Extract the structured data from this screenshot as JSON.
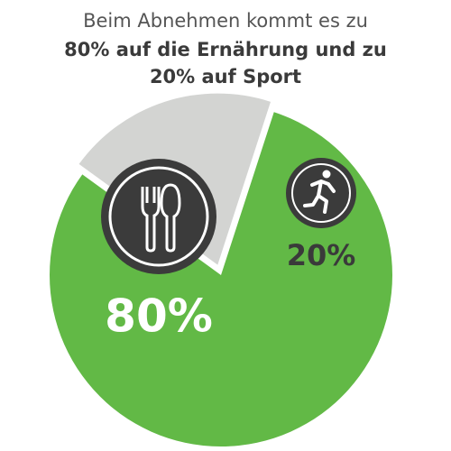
{
  "chart_data": {
    "type": "pie",
    "title": [
      "Beim Abnehmen kommt es zu",
      "80% auf die Ernährung und zu",
      "20% auf Sport"
    ],
    "values": [
      80,
      20
    ],
    "value_labels": [
      "80%",
      "20%"
    ],
    "colors": [
      "#62b946",
      "#d3d4d2"
    ],
    "label_colors": [
      "#ffffff",
      "#3a3a3a"
    ]
  }
}
